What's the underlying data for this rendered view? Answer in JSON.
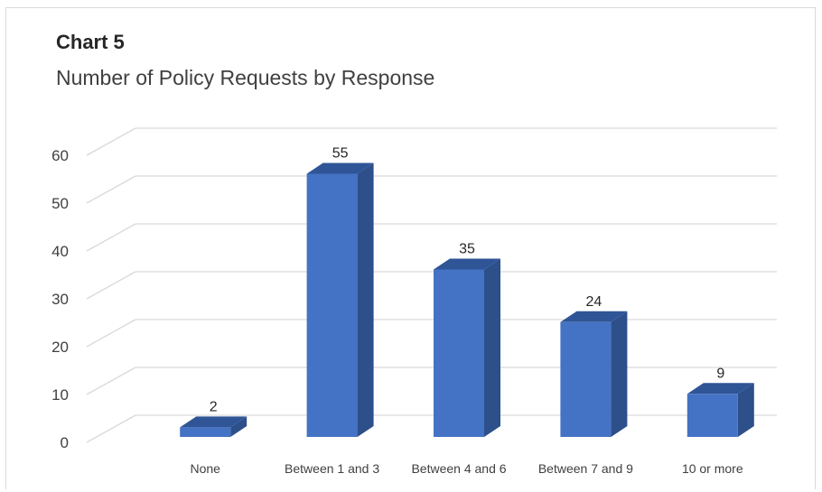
{
  "chart_data": {
    "type": "bar",
    "style": "3d-column",
    "title": "Chart 5",
    "subtitle": "Number of Policy Requests by Response",
    "categories": [
      "None",
      "Between 1 and 3",
      "Between 4 and 6",
      "Between 7 and 9",
      "10 or more"
    ],
    "values": [
      2,
      55,
      35,
      24,
      9
    ],
    "data_labels": [
      "2",
      "55",
      "35",
      "24",
      "9"
    ],
    "xlabel": "",
    "ylabel": "",
    "ylim": [
      0,
      60
    ],
    "yticks": [
      "0",
      "10",
      "20",
      "30",
      "40",
      "50",
      "60"
    ],
    "grid": true,
    "legend": "none",
    "colors": {
      "front": "#4472c4",
      "top": "#2f5597",
      "side": "#2d4f8a",
      "grid": "#d9d9d9"
    }
  }
}
